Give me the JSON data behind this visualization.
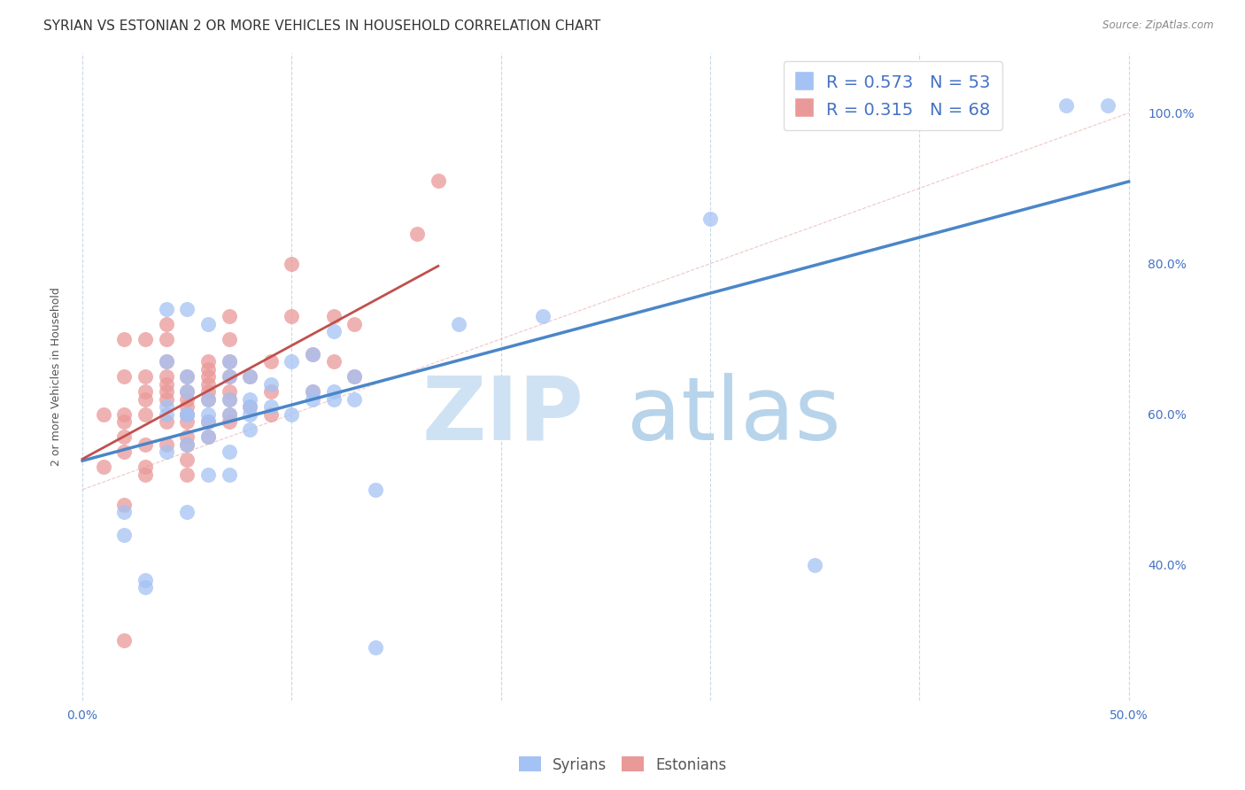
{
  "title": "SYRIAN VS ESTONIAN 2 OR MORE VEHICLES IN HOUSEHOLD CORRELATION CHART",
  "source": "Source: ZipAtlas.com",
  "ylabel_left": "2 or more Vehicles in Household",
  "xlim": [
    -0.005,
    0.505
  ],
  "ylim": [
    0.22,
    1.08
  ],
  "xticks": [
    0.0,
    0.1,
    0.2,
    0.3,
    0.4,
    0.5
  ],
  "xtick_labels_show": [
    "0.0%",
    "",
    "",
    "",
    "",
    "50.0%"
  ],
  "yticks_right": [
    0.4,
    0.6,
    0.8,
    1.0
  ],
  "ytick_labels_right": [
    "40.0%",
    "60.0%",
    "80.0%",
    "100.0%"
  ],
  "legend_entries": [
    {
      "label": "R = 0.573   N = 53",
      "color": "#a4c2f4"
    },
    {
      "label": "R = 0.315   N = 68",
      "color": "#ea9999"
    }
  ],
  "syrians_color": "#a4c2f4",
  "estonians_color": "#ea9999",
  "syrians_line_color": "#4a86c8",
  "estonians_line_color": "#c0504d",
  "watermark_zip_color": "#cfe2f3",
  "watermark_atlas_color": "#b8d4ea",
  "background_color": "#ffffff",
  "grid_color": "#c8d8e8",
  "title_fontsize": 11,
  "axis_label_fontsize": 9,
  "tick_fontsize": 10,
  "legend_fontsize": 14,
  "syrians_x": [
    0.02,
    0.02,
    0.03,
    0.03,
    0.04,
    0.04,
    0.04,
    0.04,
    0.04,
    0.05,
    0.05,
    0.05,
    0.05,
    0.05,
    0.05,
    0.05,
    0.06,
    0.06,
    0.06,
    0.06,
    0.06,
    0.06,
    0.07,
    0.07,
    0.07,
    0.07,
    0.07,
    0.07,
    0.08,
    0.08,
    0.08,
    0.08,
    0.08,
    0.09,
    0.09,
    0.1,
    0.1,
    0.11,
    0.11,
    0.11,
    0.12,
    0.12,
    0.12,
    0.13,
    0.13,
    0.14,
    0.14,
    0.18,
    0.22,
    0.3,
    0.35,
    0.47,
    0.49
  ],
  "syrians_y": [
    0.44,
    0.47,
    0.37,
    0.38,
    0.55,
    0.6,
    0.61,
    0.67,
    0.74,
    0.47,
    0.56,
    0.6,
    0.6,
    0.63,
    0.65,
    0.74,
    0.52,
    0.57,
    0.59,
    0.6,
    0.62,
    0.72,
    0.52,
    0.55,
    0.6,
    0.62,
    0.65,
    0.67,
    0.58,
    0.6,
    0.61,
    0.62,
    0.65,
    0.61,
    0.64,
    0.6,
    0.67,
    0.62,
    0.63,
    0.68,
    0.62,
    0.63,
    0.71,
    0.62,
    0.65,
    0.29,
    0.5,
    0.72,
    0.73,
    0.86,
    0.4,
    1.01,
    1.01
  ],
  "estonians_x": [
    0.01,
    0.01,
    0.02,
    0.02,
    0.02,
    0.02,
    0.02,
    0.02,
    0.02,
    0.02,
    0.03,
    0.03,
    0.03,
    0.03,
    0.03,
    0.03,
    0.03,
    0.03,
    0.04,
    0.04,
    0.04,
    0.04,
    0.04,
    0.04,
    0.04,
    0.04,
    0.04,
    0.05,
    0.05,
    0.05,
    0.05,
    0.05,
    0.05,
    0.05,
    0.05,
    0.05,
    0.05,
    0.06,
    0.06,
    0.06,
    0.06,
    0.06,
    0.06,
    0.06,
    0.06,
    0.07,
    0.07,
    0.07,
    0.07,
    0.07,
    0.07,
    0.07,
    0.07,
    0.08,
    0.08,
    0.09,
    0.09,
    0.09,
    0.1,
    0.1,
    0.11,
    0.11,
    0.12,
    0.12,
    0.13,
    0.13,
    0.16,
    0.17
  ],
  "estonians_y": [
    0.53,
    0.6,
    0.3,
    0.48,
    0.55,
    0.57,
    0.59,
    0.6,
    0.65,
    0.7,
    0.52,
    0.53,
    0.56,
    0.6,
    0.62,
    0.63,
    0.65,
    0.7,
    0.56,
    0.59,
    0.62,
    0.63,
    0.64,
    0.65,
    0.67,
    0.7,
    0.72,
    0.52,
    0.54,
    0.56,
    0.57,
    0.59,
    0.6,
    0.61,
    0.62,
    0.63,
    0.65,
    0.57,
    0.59,
    0.62,
    0.63,
    0.64,
    0.65,
    0.66,
    0.67,
    0.59,
    0.6,
    0.62,
    0.63,
    0.65,
    0.67,
    0.7,
    0.73,
    0.61,
    0.65,
    0.6,
    0.63,
    0.67,
    0.73,
    0.8,
    0.63,
    0.68,
    0.67,
    0.73,
    0.65,
    0.72,
    0.84,
    0.91
  ],
  "estonian_line_xrange": [
    0.0,
    0.17
  ],
  "syrian_line_xrange": [
    0.0,
    0.5
  ]
}
